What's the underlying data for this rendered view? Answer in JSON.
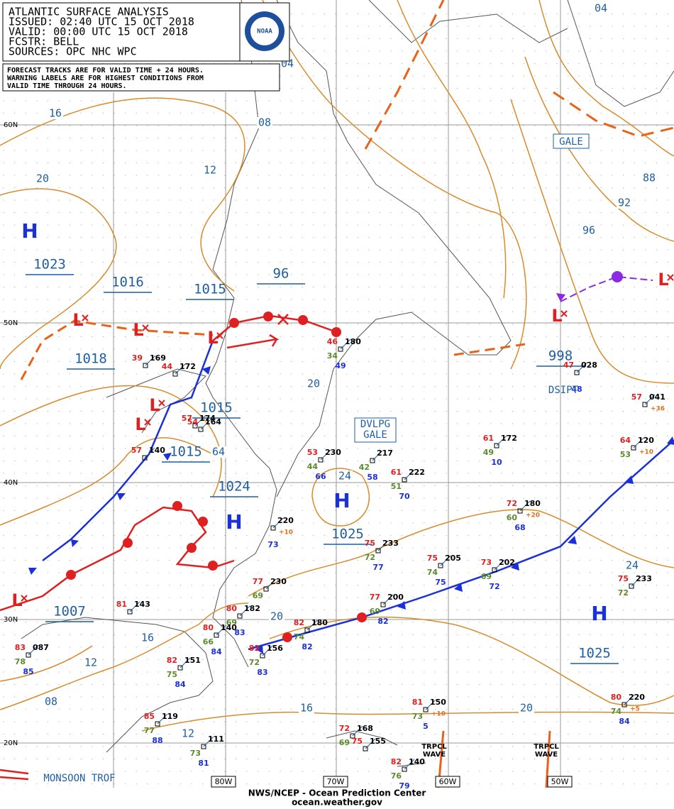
{
  "header": {
    "title": "ATLANTIC SURFACE ANALYSIS",
    "issued": "ISSUED: 02:40 UTC 15 OCT 2018",
    "valid": "VALID:  00:00 UTC 15 OCT 2018",
    "forecaster": "FCSTR:  BELL",
    "sources": "SOURCES: OPC NHC WPC",
    "logo": "NOAA"
  },
  "note": [
    "FORECAST TRACKS ARE FOR VALID TIME + 24 HOURS.",
    "WARNING LABELS ARE FOR HIGHEST CONDITIONS FROM",
    "VALID TIME THROUGH 24 HOURS."
  ],
  "symbols": [
    "H",
    "H",
    "H",
    "H",
    "L",
    "L",
    "L",
    "L",
    "L",
    "L",
    "L",
    "L"
  ],
  "pressure_labels": [
    "1023",
    "1016",
    "1015",
    "1018",
    "1015",
    "1015",
    "1024",
    "1025",
    "1025",
    "998",
    "1007",
    "96"
  ],
  "isobar_labels": [
    "16",
    "08",
    "04",
    "04",
    "12",
    "20",
    "88",
    "92",
    "96",
    "20",
    "24",
    "64",
    "20",
    "16",
    "12",
    "08",
    "16",
    "12",
    "20",
    "24"
  ],
  "warnings": {
    "gale": "GALE",
    "developing": [
      "DVLPG",
      "GALE"
    ],
    "dissipating": "DSIPT"
  },
  "feature_labels": {
    "monsoon": "MONSOON TROF",
    "waves": [
      [
        "TRPCL",
        "WAVE"
      ],
      [
        "TRPCL",
        "WAVE"
      ]
    ]
  },
  "lat_labels": [
    "60N",
    "50N",
    "40N",
    "30N",
    "20N"
  ],
  "lon_labels": [
    "80W",
    "70W",
    "60W",
    "50W"
  ],
  "stations": [
    {
      "pressure": "180",
      "temperature": "46",
      "dewpoint": "34",
      "sea_temp": "49"
    },
    {
      "pressure": "169",
      "temperature": "39"
    },
    {
      "pressure": "172",
      "temperature": "44"
    },
    {
      "pressure": "174",
      "temperature": "57"
    },
    {
      "pressure": "164",
      "temperature": "54"
    },
    {
      "pressure": "140",
      "temperature": "57"
    },
    {
      "pressure": "230",
      "temperature": "53",
      "dewpoint": "44",
      "sea_temp": "66"
    },
    {
      "pressure": "217",
      "dewpoint": "42",
      "sea_temp": "58"
    },
    {
      "pressure": "222",
      "temperature": "61",
      "dewpoint": "51",
      "sea_temp": "70"
    },
    {
      "pressure": "172",
      "temperature": "61",
      "dewpoint": "49",
      "sea_temp": "10"
    },
    {
      "pressure": "180",
      "temperature": "72",
      "dewpoint": "60",
      "sea_temp": "68",
      "tendency": "+20"
    },
    {
      "pressure": "220",
      "sea_temp": "73",
      "tendency": "+10"
    },
    {
      "pressure": "233",
      "temperature": "75",
      "dewpoint": "72",
      "sea_temp": "77"
    },
    {
      "pressure": "205",
      "temperature": "75",
      "dewpoint": "74",
      "sea_temp": "75"
    },
    {
      "pressure": "202",
      "temperature": "73",
      "dewpoint": "69",
      "sea_temp": "72"
    },
    {
      "pressure": "200",
      "temperature": "77",
      "dewpoint": "69",
      "sea_temp": "82"
    },
    {
      "pressure": "233",
      "temperature": "75",
      "dewpoint": "72"
    },
    {
      "pressure": "230",
      "temperature": "77",
      "dewpoint": "69"
    },
    {
      "pressure": "182",
      "temperature": "80",
      "dewpoint": "69",
      "sea_temp": "83"
    },
    {
      "pressure": "143",
      "temperature": "81"
    },
    {
      "pressure": "180",
      "temperature": "82",
      "dewpoint": "74",
      "sea_temp": "82"
    },
    {
      "pressure": "140",
      "temperature": "80",
      "dewpoint": "66",
      "sea_temp": "84"
    },
    {
      "pressure": "156",
      "temperature": "83",
      "dewpoint": "72",
      "sea_temp": "83"
    },
    {
      "pressure": "151",
      "temperature": "82",
      "dewpoint": "75",
      "sea_temp": "84"
    },
    {
      "pressure": "087",
      "temperature": "83",
      "dewpoint": "78",
      "sea_temp": "85"
    },
    {
      "pressure": "150",
      "temperature": "81",
      "dewpoint": "73",
      "sea_temp": "5",
      "tendency": "+10"
    },
    {
      "pressure": "220",
      "temperature": "80",
      "dewpoint": "74",
      "sea_temp": "84",
      "tendency": "+5"
    },
    {
      "pressure": "119",
      "temperature": "85",
      "dewpoint": "77",
      "sea_temp": "88"
    },
    {
      "pressure": "111",
      "dewpoint": "73",
      "sea_temp": "81"
    },
    {
      "pressure": "168",
      "temperature": "72",
      "dewpoint": "69"
    },
    {
      "pressure": "155",
      "temperature": "75"
    },
    {
      "pressure": "140",
      "temperature": "82",
      "dewpoint": "76",
      "sea_temp": "79"
    },
    {
      "pressure": "041",
      "temperature": "57",
      "tendency": "+36"
    },
    {
      "pressure": "120",
      "temperature": "64",
      "dewpoint": "53",
      "tendency": "+10"
    },
    {
      "pressure": "028",
      "temperature": "47",
      "sea_temp": "48"
    }
  ],
  "footer": [
    "NWS/NCEP - Ocean Prediction Center",
    "ocean.weather.gov"
  ]
}
